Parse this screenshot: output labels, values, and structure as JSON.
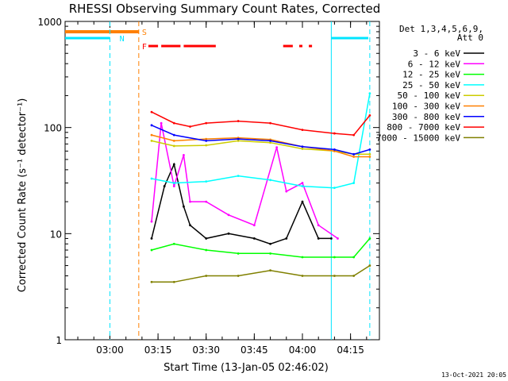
{
  "chart_data": {
    "type": "line",
    "title": "RHESSI Observing Summary Count Rates, Corrected",
    "xlabel": "Start Time (13-Jan-05 02:46:02)",
    "ylabel": "Corrected Count Rate (s⁻¹ detector⁻¹)",
    "y_scale": "log",
    "ylim": [
      1,
      1000
    ],
    "xlim": [
      "02:46:02",
      "04:24"
    ],
    "x_ticks": [
      "03:00",
      "03:15",
      "03:30",
      "03:45",
      "04:00",
      "04:15"
    ],
    "y_ticks": [
      "1",
      "10",
      "100",
      "1000"
    ],
    "legend_title": [
      "Det 1,3,4,5,6,9,",
      "Att 0"
    ],
    "legend_position": "right",
    "timestamp": "13-Oct-2021 20:05",
    "flags": [
      {
        "label": "S",
        "color": "#ff8000"
      },
      {
        "label": "N",
        "color": "#00e5ff"
      },
      {
        "label": "F",
        "color": "#ff0000"
      }
    ],
    "series": [
      {
        "name": "3 - 6 keV",
        "color": "#000000",
        "x": [
          "03:13",
          "03:17",
          "03:20",
          "03:23",
          "03:25",
          "03:30",
          "03:37",
          "03:45",
          "03:50",
          "03:55",
          "04:00",
          "04:05",
          "04:09"
        ],
        "y": [
          9,
          28,
          45,
          18,
          12,
          9,
          10,
          9,
          8,
          9,
          20,
          9,
          9
        ]
      },
      {
        "name": "6 - 12 keV",
        "color": "#ff00ff",
        "x": [
          "03:13",
          "03:16",
          "03:20",
          "03:23",
          "03:25",
          "03:30",
          "03:37",
          "03:45",
          "03:52",
          "03:55",
          "04:00",
          "04:05",
          "04:11"
        ],
        "y": [
          13,
          110,
          28,
          55,
          20,
          20,
          15,
          12,
          65,
          25,
          30,
          12,
          9
        ]
      },
      {
        "name": "12 - 25 keV",
        "color": "#00ff00",
        "x": [
          "03:13",
          "03:20",
          "03:30",
          "03:40",
          "03:50",
          "04:00",
          "04:10",
          "04:16",
          "04:21"
        ],
        "y": [
          7,
          8,
          7,
          6.5,
          6.5,
          6,
          6,
          6,
          9
        ]
      },
      {
        "name": "25 - 50 keV",
        "color": "#00ffff",
        "x": [
          "03:13",
          "03:20",
          "03:30",
          "03:40",
          "03:50",
          "04:00",
          "04:10",
          "04:16",
          "04:21"
        ],
        "y": [
          33,
          30,
          31,
          35,
          32,
          28,
          27,
          30,
          210
        ]
      },
      {
        "name": "50 - 100 keV",
        "color": "#cccc00",
        "x": [
          "03:13",
          "03:20",
          "03:30",
          "03:40",
          "03:50",
          "04:00",
          "04:10",
          "04:16",
          "04:21"
        ],
        "y": [
          75,
          67,
          68,
          75,
          72,
          63,
          60,
          56,
          56
        ]
      },
      {
        "name": "100 - 300 keV",
        "color": "#ff8000",
        "x": [
          "03:13",
          "03:20",
          "03:30",
          "03:40",
          "03:50",
          "04:00",
          "04:10",
          "04:16",
          "04:21"
        ],
        "y": [
          85,
          75,
          78,
          80,
          77,
          66,
          60,
          53,
          53
        ]
      },
      {
        "name": "300 - 800 keV",
        "color": "#0000ff",
        "x": [
          "03:13",
          "03:20",
          "03:30",
          "03:40",
          "03:50",
          "04:00",
          "04:10",
          "04:16",
          "04:21"
        ],
        "y": [
          105,
          85,
          75,
          78,
          75,
          66,
          62,
          56,
          62
        ]
      },
      {
        "name": "800 - 7000 keV",
        "color": "#ff0000",
        "x": [
          "03:13",
          "03:20",
          "03:25",
          "03:30",
          "03:40",
          "03:50",
          "04:00",
          "04:10",
          "04:16",
          "04:21"
        ],
        "y": [
          140,
          110,
          102,
          110,
          115,
          110,
          95,
          88,
          85,
          130
        ]
      },
      {
        "name": "7000 - 15000 keV",
        "color": "#808000",
        "x": [
          "03:13",
          "03:20",
          "03:30",
          "03:40",
          "03:50",
          "04:00",
          "04:10",
          "04:16",
          "04:21"
        ],
        "y": [
          3.5,
          3.5,
          4,
          4,
          4.5,
          4,
          4,
          4,
          5
        ]
      }
    ]
  }
}
